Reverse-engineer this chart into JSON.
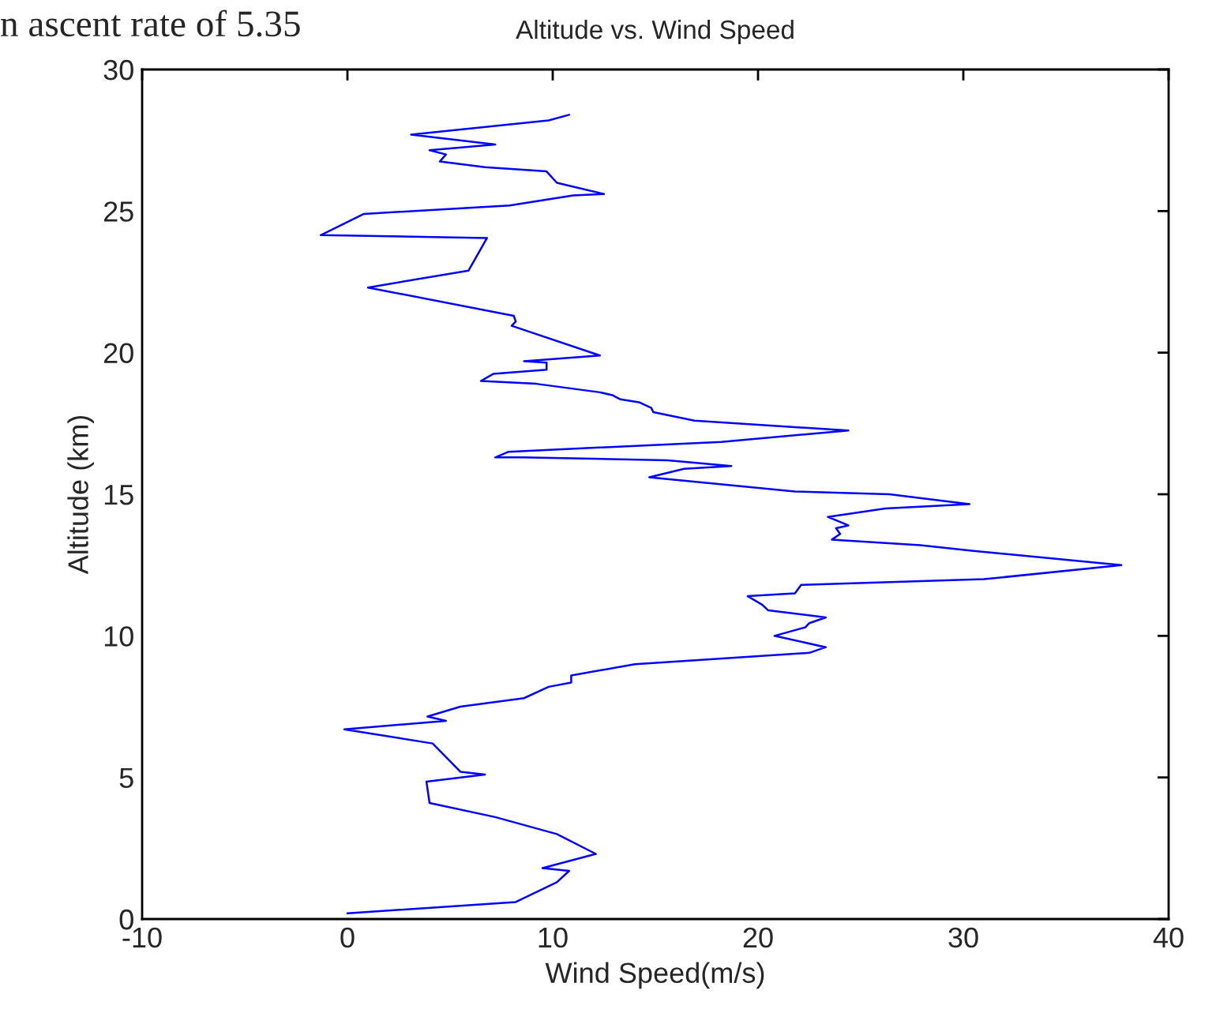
{
  "chart_data": {
    "type": "line",
    "title": "Altitude vs. Wind Speed",
    "xlabel": "Wind Speed(m/s)",
    "ylabel": "Altitude (km)",
    "annotations": [
      "n ascent rate of 5.35"
    ],
    "xlim": [
      -10,
      40
    ],
    "xticks": [
      -10,
      0,
      10,
      20,
      30,
      40
    ],
    "ylim": [
      0,
      30
    ],
    "yticks": [
      0,
      5,
      10,
      15,
      20,
      25,
      30
    ],
    "grid": false,
    "legend": false,
    "series": [
      {
        "color": "#0000ff",
        "x": [
          0,
          8.2,
          10.2,
          10.8,
          9.5,
          12.1,
          10.2,
          7.2,
          4.0,
          3.85,
          6.7,
          5.5,
          4.15,
          -0.15,
          4.8,
          3.9,
          5.5,
          8.6,
          9.8,
          10.9,
          10.9,
          14.0,
          22.5,
          23.3,
          20.8,
          22.3,
          22.5,
          23.3,
          20.5,
          20.2,
          19.5,
          21.8,
          22.1,
          31.0,
          37.7,
          30.5,
          27.9,
          23.6,
          24.0,
          23.8,
          24.4,
          23.4,
          26.2,
          30.3,
          26.4,
          21.8,
          14.7,
          16.4,
          18.7,
          15.6,
          8.5,
          7.2,
          7.85,
          18.2,
          24.4,
          16.9,
          14.9,
          14.8,
          14.2,
          13.3,
          12.9,
          12.3,
          9.2,
          6.5,
          7.1,
          9.7,
          9.7,
          8.6,
          12.3,
          8.0,
          8.2,
          8.1,
          1.0,
          5.9,
          6.8,
          -1.3,
          0.8,
          7.9,
          11.0,
          12.5,
          10.2,
          9.7,
          6.7,
          4.5,
          4.8,
          4.0,
          7.2,
          3.1,
          9.8,
          10.8
        ],
        "values": [
          0.2,
          0.6,
          1.3,
          1.7,
          1.8,
          2.3,
          3.0,
          3.6,
          4.1,
          4.85,
          5.1,
          5.2,
          6.2,
          6.7,
          7.0,
          7.15,
          7.5,
          7.8,
          8.2,
          8.35,
          8.6,
          9.0,
          9.4,
          9.6,
          10.0,
          10.3,
          10.45,
          10.65,
          10.9,
          11.1,
          11.4,
          11.5,
          11.8,
          12.0,
          12.5,
          13.0,
          13.2,
          13.4,
          13.6,
          13.8,
          13.9,
          14.2,
          14.5,
          14.65,
          15.0,
          15.1,
          15.6,
          15.9,
          16.0,
          16.2,
          16.3,
          16.3,
          16.5,
          16.85,
          17.25,
          17.6,
          17.9,
          18.05,
          18.25,
          18.35,
          18.5,
          18.6,
          18.9,
          19.0,
          19.25,
          19.4,
          19.65,
          19.7,
          19.9,
          20.95,
          21.1,
          21.3,
          22.3,
          22.9,
          24.05,
          24.15,
          24.9,
          25.2,
          25.55,
          25.6,
          26.0,
          26.4,
          26.55,
          26.75,
          27.0,
          27.15,
          27.35,
          27.7,
          28.2,
          28.4
        ]
      }
    ]
  }
}
